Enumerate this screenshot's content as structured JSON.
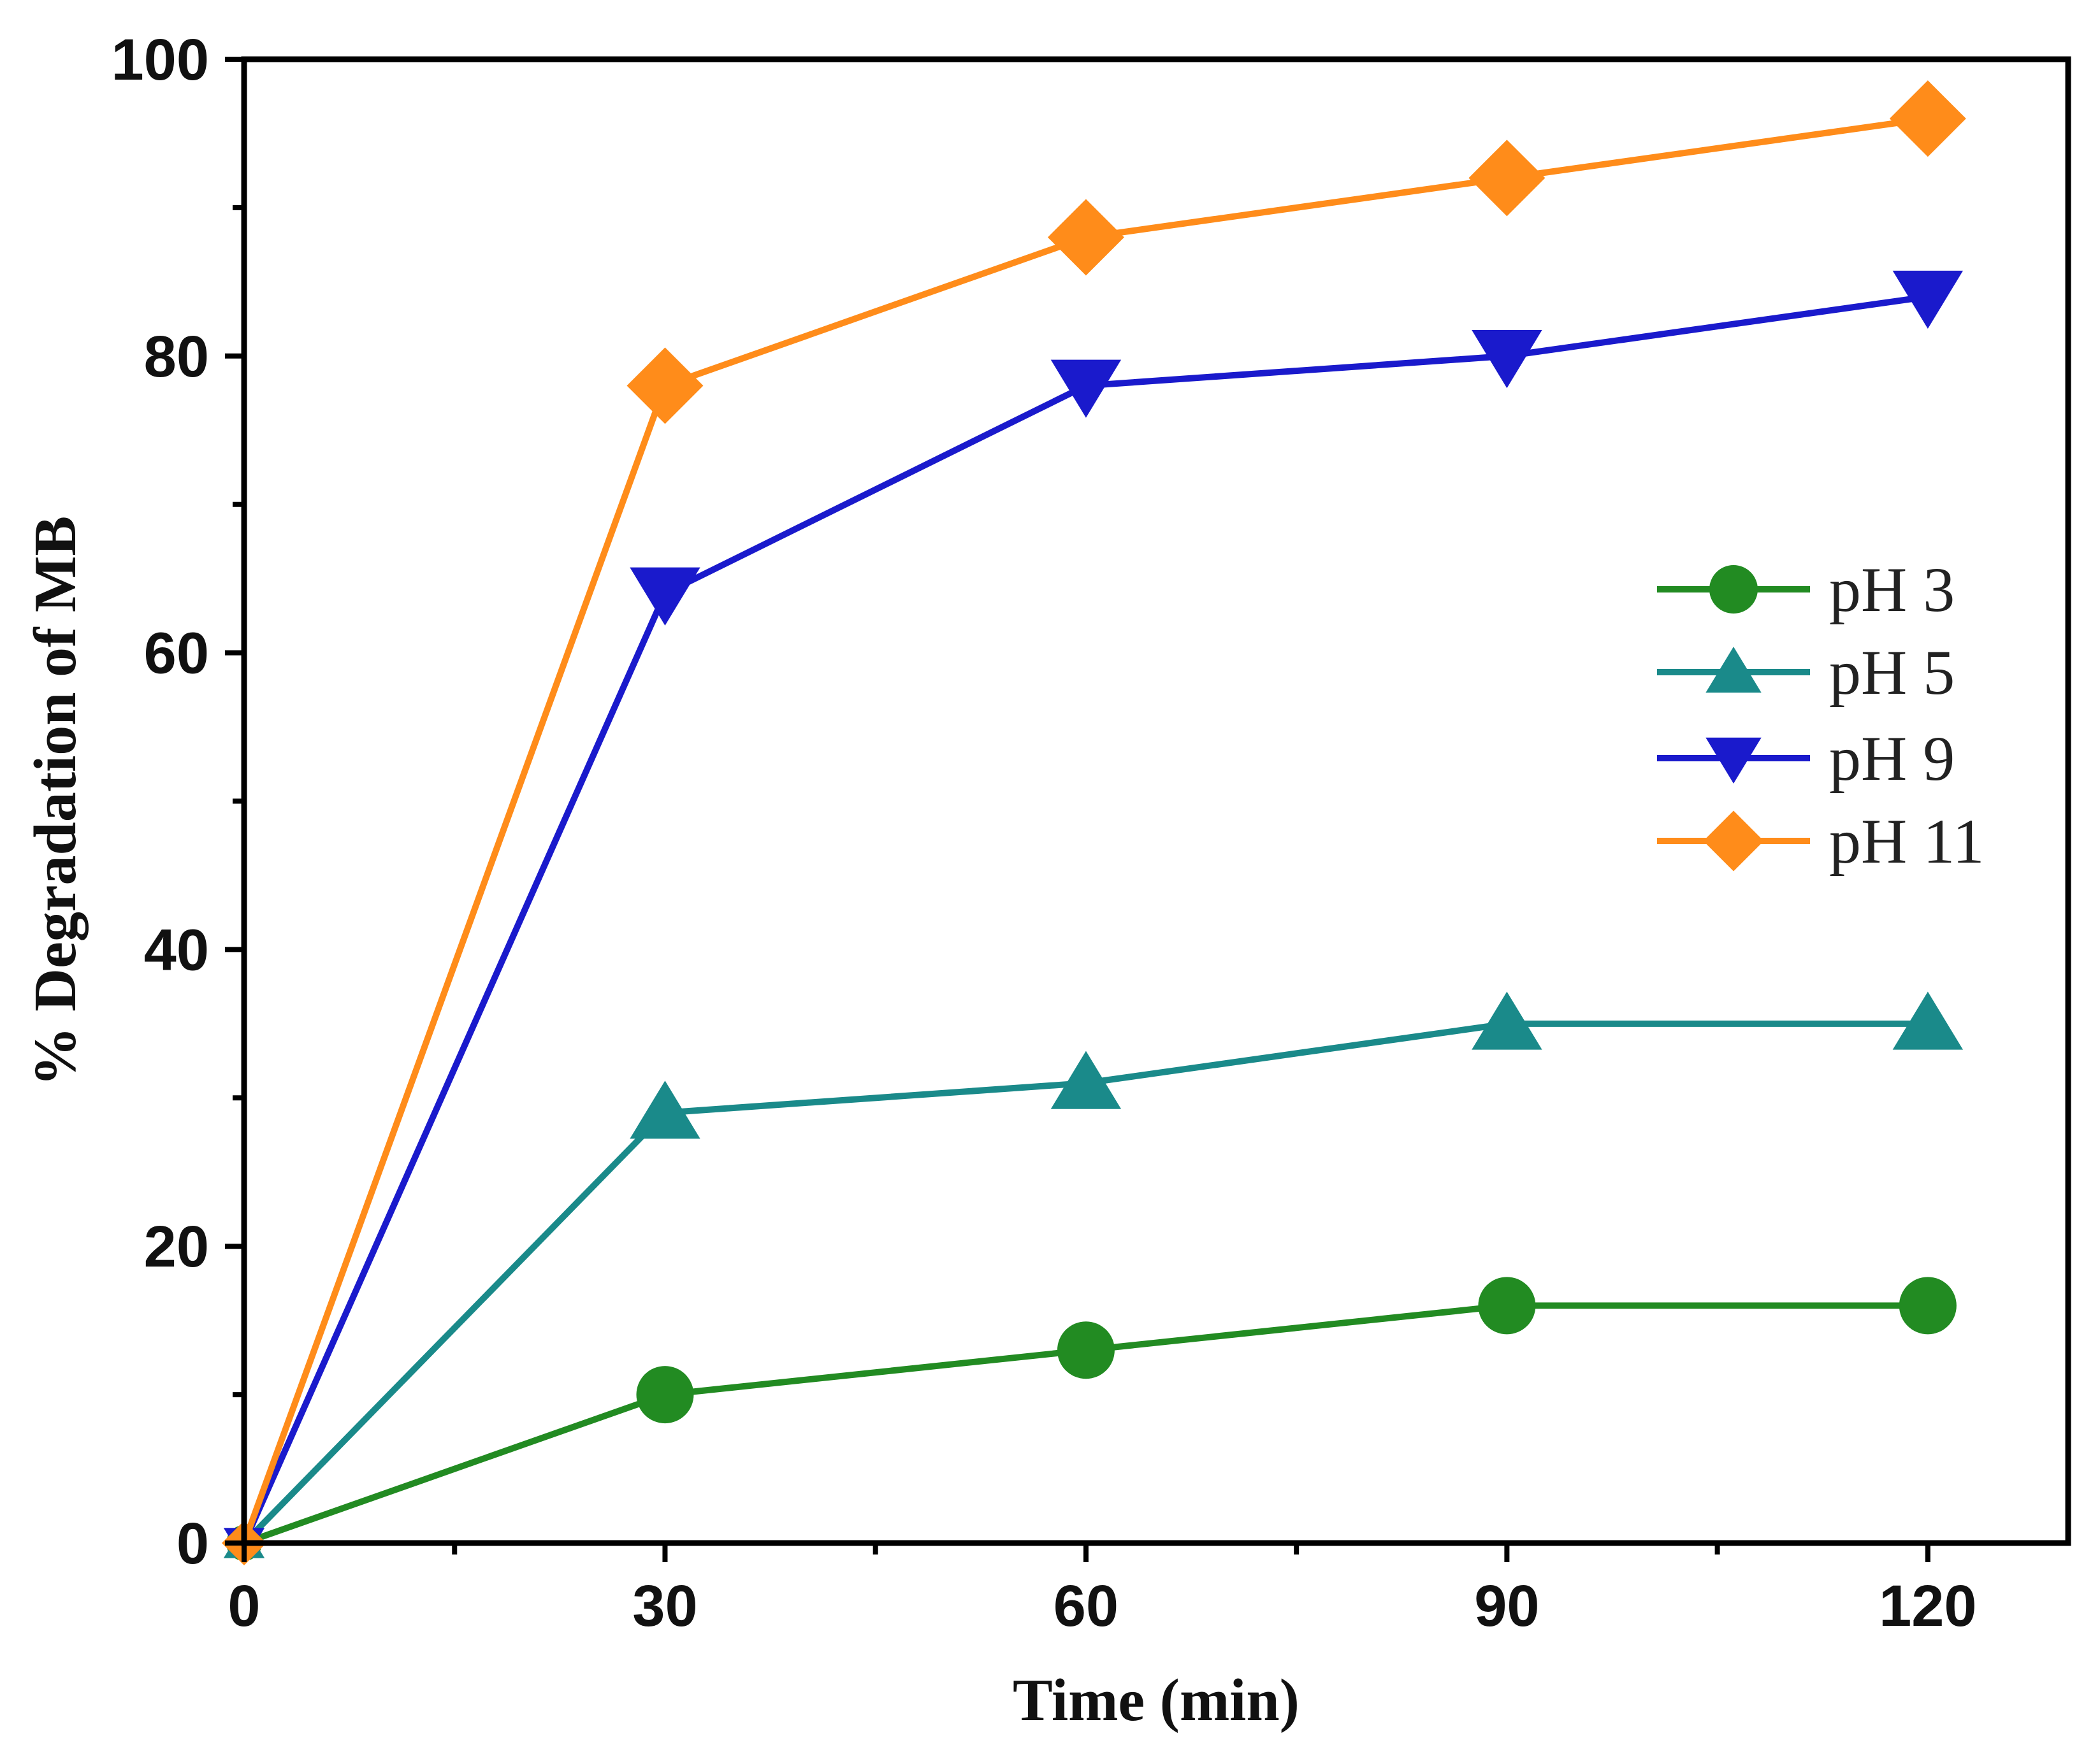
{
  "chart_data": {
    "type": "line",
    "title": "",
    "xlabel": "Time (min)",
    "ylabel": "% Degradation of MB",
    "xlim": [
      0,
      130
    ],
    "ylim": [
      0,
      100
    ],
    "x_ticks": [
      0,
      30,
      60,
      90,
      120
    ],
    "y_ticks": [
      0,
      20,
      40,
      60,
      80,
      100
    ],
    "grid": false,
    "legend_position": "right-middle",
    "x": [
      0,
      30,
      60,
      90,
      120
    ],
    "series": [
      {
        "name": "pH 3",
        "color": "#228B22",
        "marker": "circle",
        "values": [
          0,
          10,
          13,
          16,
          16
        ]
      },
      {
        "name": "pH 5",
        "color": "#1A8A8A",
        "marker": "triangle-up",
        "values": [
          0,
          29,
          31,
          35,
          35
        ]
      },
      {
        "name": "pH 9",
        "color": "#1A1ACC",
        "marker": "triangle-down",
        "values": [
          0,
          64,
          78,
          80,
          84
        ]
      },
      {
        "name": "pH 11",
        "color": "#FF8C1A",
        "marker": "diamond",
        "values": [
          0,
          78,
          88,
          92,
          96
        ]
      }
    ]
  }
}
